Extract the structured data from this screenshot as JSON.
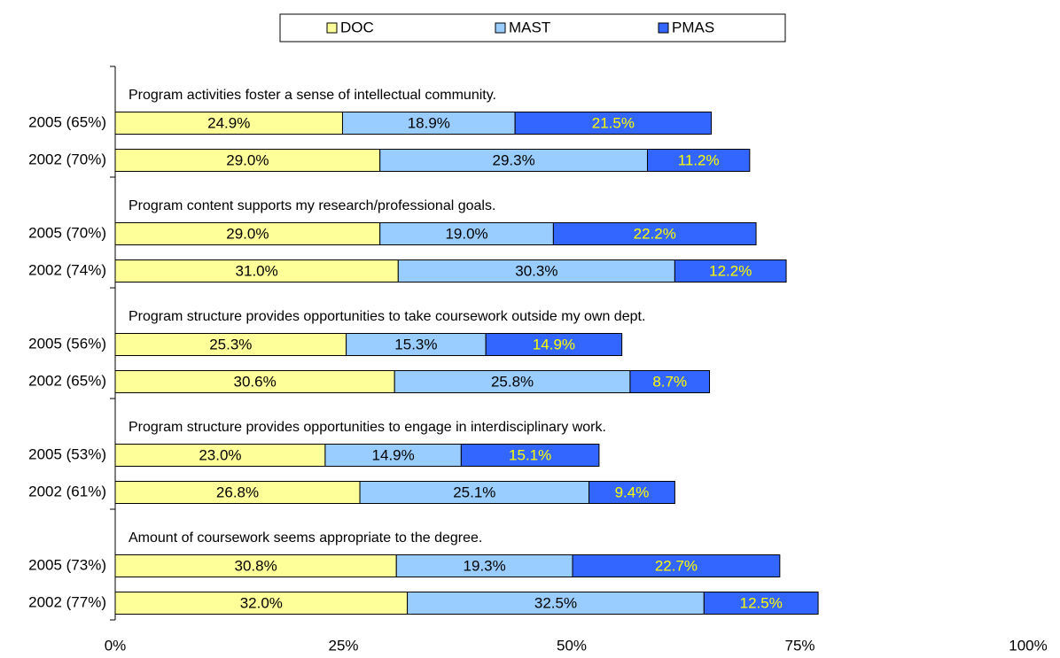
{
  "chart_data": {
    "type": "stacked_bar_h",
    "groups": [
      "Program activities foster a sense of intellectual community.",
      "Program content supports my research/professional goals.",
      "Program structure provides opportunities to take coursework outside my own dept.",
      "Program structure provides opportunities to engage in interdisciplinary work.",
      "Amount of coursework seems appropriate to the degree."
    ],
    "categories": [
      "2005 (65%)",
      "2002 (70%)",
      "2005 (70%)",
      "2002 (74%)",
      "2005 (56%)",
      "2002 (65%)",
      "2005 (53%)",
      "2002 (61%)",
      "2005 (73%)",
      "2002 (77%)"
    ],
    "series": [
      {
        "name": "DOC",
        "color": "#ffff99",
        "label_color": "#000000",
        "values": [
          24.9,
          29,
          29,
          31,
          25.3,
          30.6,
          23,
          26.8,
          30.8,
          32
        ],
        "value_labels": [
          "24.9%",
          "29.0%",
          "29.0%",
          "31.0%",
          "25.3%",
          "30.6%",
          "23.0%",
          "26.8%",
          "30.8%",
          "32.0%"
        ]
      },
      {
        "name": "MAST",
        "color": "#99ccff",
        "label_color": "#000000",
        "values": [
          18.9,
          29.3,
          19,
          30.3,
          15.3,
          25.8,
          14.9,
          25.1,
          19.3,
          32.5
        ],
        "value_labels": [
          "18.9%",
          "29.3%",
          "19.0%",
          "30.3%",
          "15.3%",
          "25.8%",
          "14.9%",
          "25.1%",
          "19.3%",
          "32.5%"
        ]
      },
      {
        "name": "PMAS",
        "color": "#3366ff",
        "label_color": "#ffff00",
        "values": [
          21.5,
          11.2,
          22.2,
          12.2,
          14.9,
          8.7,
          15.1,
          9.4,
          22.7,
          12.5
        ],
        "value_labels": [
          "21.5%",
          "11.2%",
          "22.2%",
          "12.2%",
          "14.9%",
          "8.7%",
          "15.1%",
          "9.4%",
          "22.7%",
          "12.5%"
        ]
      }
    ],
    "xlim": [
      0,
      100
    ],
    "xticks": [
      {
        "value": 0,
        "label": "0%"
      },
      {
        "value": 25,
        "label": "25%"
      },
      {
        "value": 50,
        "label": "50%"
      },
      {
        "value": 75,
        "label": "75%"
      },
      {
        "value": 100,
        "label": "100%"
      }
    ],
    "legend": "top"
  }
}
